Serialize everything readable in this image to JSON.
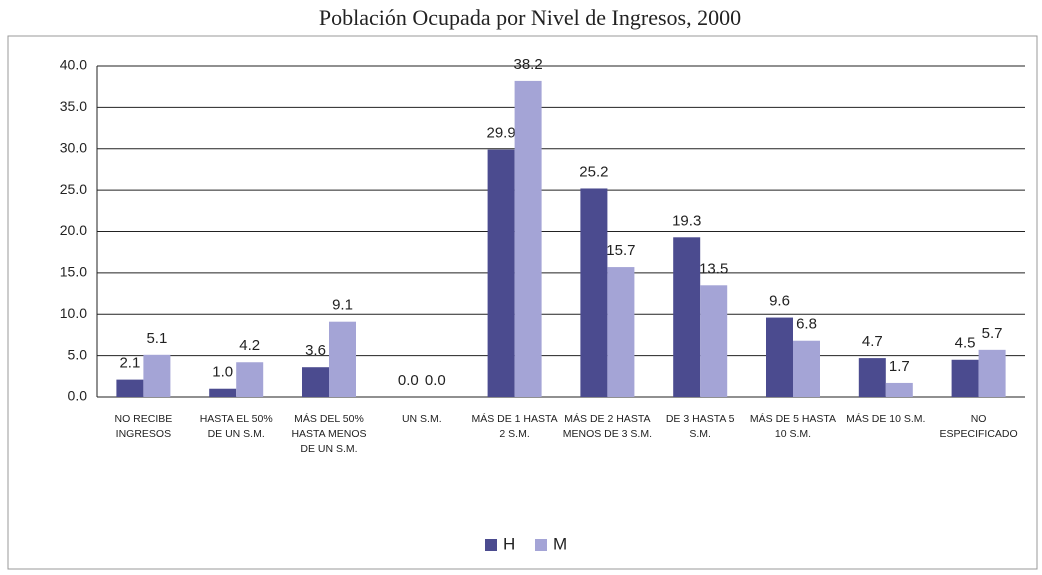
{
  "chart_data": {
    "type": "bar",
    "title": "Población Ocupada por Nivel de Ingresos, 2000",
    "categories": [
      "NO RECIBE INGRESOS",
      "HASTA EL 50% DE UN S.M.",
      "MÁS DEL 50% HASTA MENOS DE UN S.M.",
      "UN S.M.",
      "MÁS DE 1 HASTA 2 S.M.",
      "MÁS DE 2 HASTA MENOS DE 3 S.M.",
      "DE 3 HASTA 5 S.M.",
      "MÁS DE 5 HASTA 10 S.M.",
      "MÁS DE 10 S.M.",
      "NO ESPECIFICADO"
    ],
    "series": [
      {
        "name": "H",
        "color": "#4b4b8f",
        "values": [
          2.1,
          1.0,
          3.6,
          0.0,
          29.9,
          25.2,
          19.3,
          9.6,
          4.7,
          4.5
        ],
        "value_labels": [
          "2.1",
          "1.0",
          "3.6",
          "0.0",
          "29.9",
          "25.2",
          "19.3",
          "9.6",
          "4.7",
          "4.5"
        ]
      },
      {
        "name": "M",
        "color": "#a4a4d6",
        "values": [
          5.1,
          4.2,
          9.1,
          0.0,
          38.2,
          15.7,
          13.5,
          6.8,
          1.7,
          5.7
        ],
        "value_labels": [
          "5.1",
          "4.2",
          "9.1",
          "0.0",
          "38.2",
          "15.7",
          "13.5",
          "6.8",
          "1.7",
          "5.7"
        ]
      }
    ],
    "ylim": [
      0,
      40
    ],
    "yticks": [
      {
        "value": 0,
        "label": "0.0"
      },
      {
        "value": 5,
        "label": "5.0"
      },
      {
        "value": 10,
        "label": "10.0"
      },
      {
        "value": 15,
        "label": "15.0"
      },
      {
        "value": 20,
        "label": "20.0"
      },
      {
        "value": 25,
        "label": "25.0"
      },
      {
        "value": 30,
        "label": "30.0"
      },
      {
        "value": 35,
        "label": "35.0"
      },
      {
        "value": 40,
        "label": "40.0"
      }
    ],
    "grid": true,
    "legend": "bottom"
  }
}
